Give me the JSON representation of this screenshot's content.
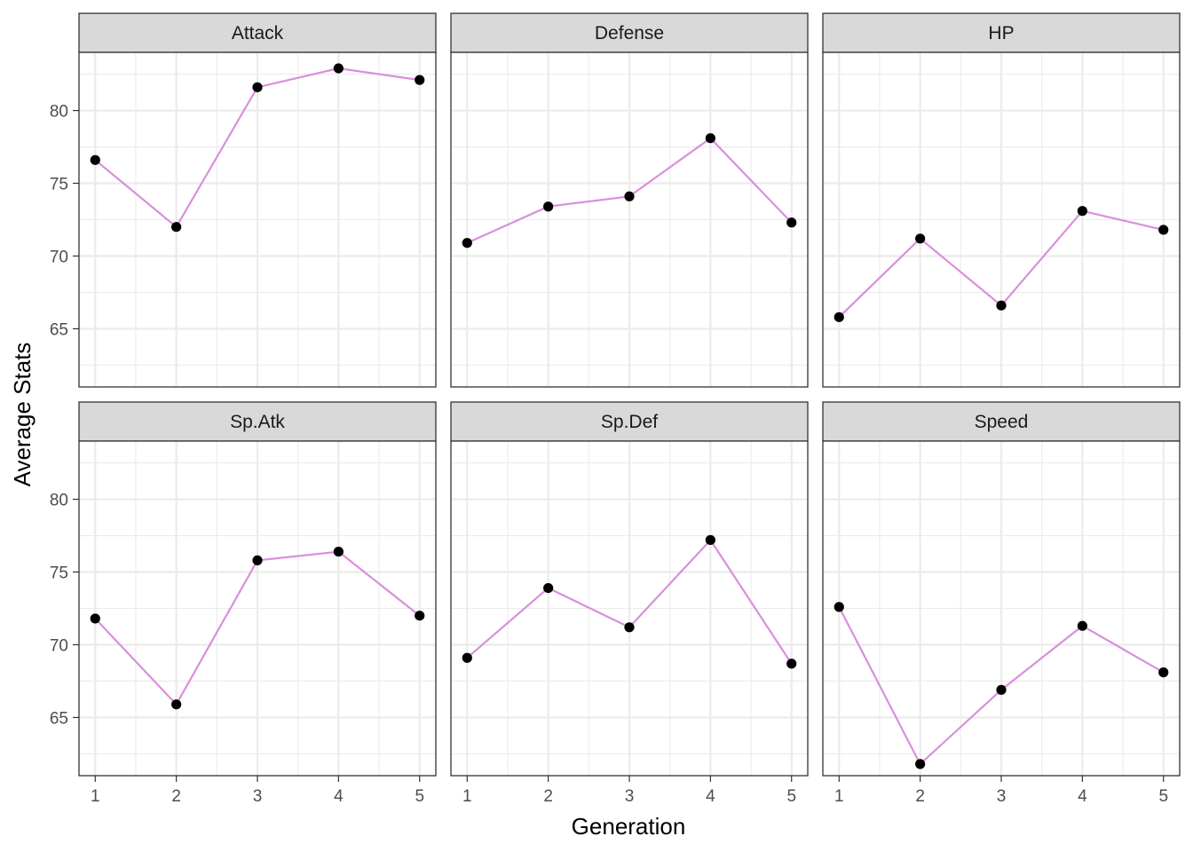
{
  "chart_data": {
    "type": "line",
    "x_axis": {
      "title": "Generation",
      "ticks": [
        "1",
        "2",
        "3",
        "4",
        "5"
      ],
      "range": [
        0.8,
        5.2
      ]
    },
    "y_axis": {
      "title": "Average Stats",
      "ticks": [
        "65",
        "70",
        "75",
        "80"
      ],
      "tick_values": [
        65,
        70,
        75,
        80
      ],
      "range": [
        61.0,
        84.0
      ]
    },
    "x": [
      1,
      2,
      3,
      4,
      5
    ],
    "line_color": "#DA8FDC",
    "point_color": "#000000",
    "grid": true,
    "layout": "facets 2 rows x 3 columns",
    "facets": [
      {
        "label": "Attack",
        "values": [
          76.6,
          72.0,
          81.6,
          82.9,
          82.1
        ]
      },
      {
        "label": "Defense",
        "values": [
          70.9,
          73.4,
          74.1,
          78.1,
          72.3
        ]
      },
      {
        "label": "HP",
        "values": [
          65.8,
          71.2,
          66.6,
          73.1,
          71.8
        ]
      },
      {
        "label": "Sp.Atk",
        "values": [
          71.8,
          65.9,
          75.8,
          76.4,
          72.0
        ]
      },
      {
        "label": "Sp.Def",
        "values": [
          69.1,
          73.9,
          71.2,
          77.2,
          68.7
        ]
      },
      {
        "label": "Speed",
        "values": [
          72.6,
          61.8,
          66.9,
          71.3,
          68.1
        ]
      }
    ]
  }
}
